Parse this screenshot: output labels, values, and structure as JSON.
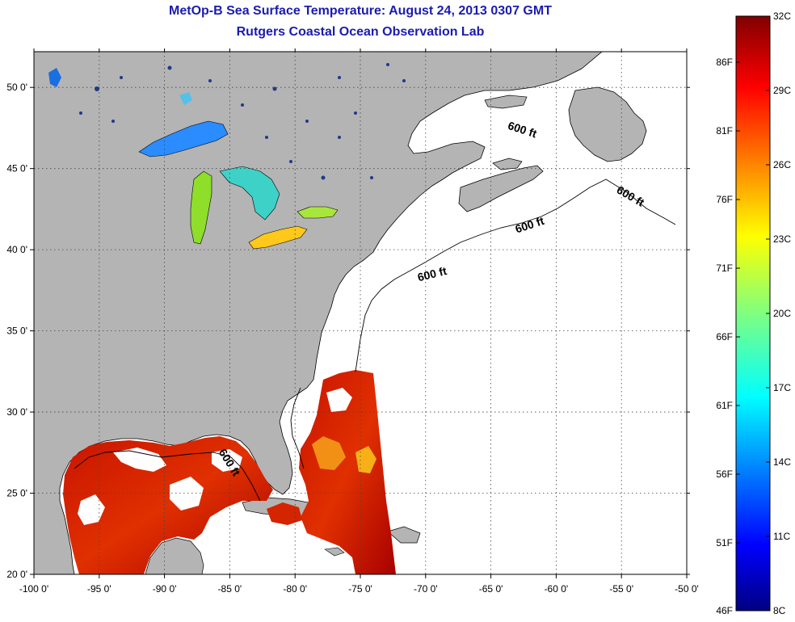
{
  "title": {
    "line1": "MetOp-B Sea Surface Temperature:  August 24, 2013 0307 GMT",
    "line2": "Rutgers Coastal Ocean Observation Lab"
  },
  "map": {
    "lon_ticks": [
      "-100 0'",
      "-95 0'",
      "-90 0'",
      "-85 0'",
      "-80 0'",
      "-75 0'",
      "-70 0'",
      "-65 0'",
      "-60 0'",
      "-55 0'",
      "-50 0'"
    ],
    "lat_ticks": [
      "50 0'",
      "45 0'",
      "40 0'",
      "35 0'",
      "30 0'",
      "25 0'",
      "20 0'"
    ],
    "lon_range": [
      -100,
      -50
    ],
    "lat_range": [
      20,
      52.2
    ],
    "land_color": "#b4b4b4",
    "ocean_color": "#ffffff",
    "depth_labels": [
      "600 ft",
      "600 ft",
      "600 ft",
      "600 ft",
      "600 ft"
    ]
  },
  "colorbar": {
    "celsius_ticks": [
      "32C",
      "29C",
      "26C",
      "23C",
      "20C",
      "17C",
      "14C",
      "11C",
      "8C"
    ],
    "fahrenheit_ticks": [
      "86F",
      "81F",
      "76F",
      "71F",
      "66F",
      "61F",
      "56F",
      "51F",
      "46F"
    ],
    "colormap": "jet",
    "range_c": [
      8,
      32
    ]
  }
}
